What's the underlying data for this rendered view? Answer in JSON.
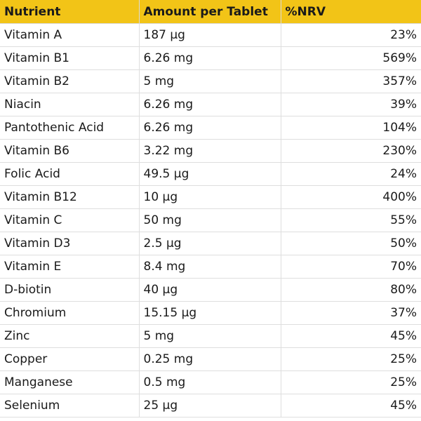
{
  "table": {
    "headers": [
      "Nutrient",
      "Amount per Tablet",
      "%NRV"
    ],
    "rows": [
      [
        "Vitamin A",
        "187 µg",
        "23%"
      ],
      [
        "Vitamin B1",
        "6.26 mg",
        "569%"
      ],
      [
        "Vitamin B2",
        "5 mg",
        "357%"
      ],
      [
        "Niacin",
        "6.26 mg",
        "39%"
      ],
      [
        "Pantothenic Acid",
        "6.26 mg",
        "104%"
      ],
      [
        "Vitamin B6",
        "3.22 mg",
        "230%"
      ],
      [
        "Folic Acid",
        "49.5 µg",
        "24%"
      ],
      [
        "Vitamin B12",
        "10 µg",
        "400%"
      ],
      [
        "Vitamin C",
        "50 mg",
        "55%"
      ],
      [
        "Vitamin D3",
        "2.5 µg",
        "50%"
      ],
      [
        "Vitamin E",
        "8.4 mg",
        "70%"
      ],
      [
        "D-biotin",
        "40 µg",
        "80%"
      ],
      [
        "Chromium",
        "15.15 µg",
        "37%"
      ],
      [
        "Zinc",
        "5 mg",
        "45%"
      ],
      [
        "Copper",
        "0.25 mg",
        "25%"
      ],
      [
        "Manganese",
        "0.5 mg",
        "25%"
      ],
      [
        "Selenium",
        "25 µg",
        "45%"
      ]
    ]
  },
  "colors": {
    "header_bg": "#f2c417",
    "grid_line": "#dedede"
  }
}
